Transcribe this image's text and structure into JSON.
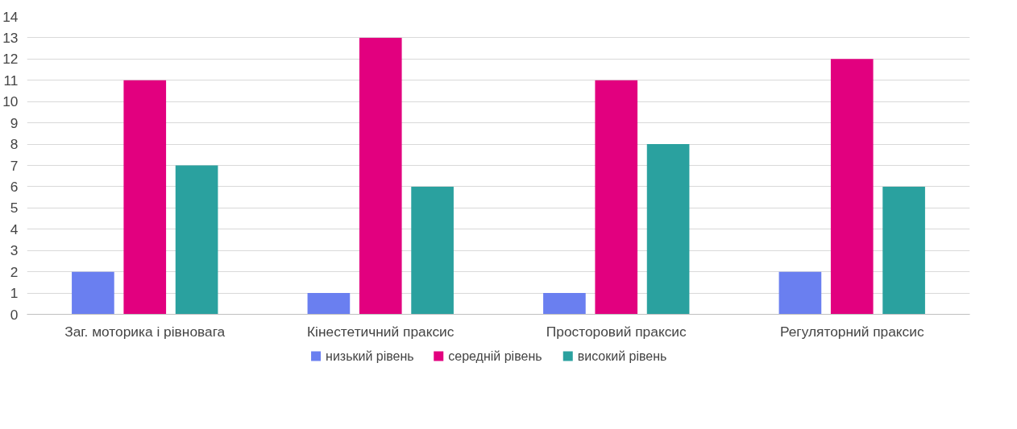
{
  "chart_data": {
    "type": "bar",
    "categories": [
      "Заг. моторика і рівновага",
      "Кінестетичний праксис",
      "Просторовий праксис",
      "Регуляторний праксис"
    ],
    "series": [
      {
        "name": "низький рівень",
        "color": "#6a7ff0",
        "values": [
          2,
          1,
          1,
          2
        ]
      },
      {
        "name": "середній рівень",
        "color": "#e2007f",
        "values": [
          11,
          13,
          11,
          12
        ]
      },
      {
        "name": "високий рівень",
        "color": "#2aa19f",
        "values": [
          7,
          6,
          8,
          6
        ]
      }
    ],
    "ylim": [
      0,
      14
    ],
    "yticks": [
      0,
      1,
      2,
      3,
      4,
      5,
      6,
      7,
      8,
      9,
      10,
      11,
      12,
      13,
      14
    ],
    "grid": "y",
    "legend": "bottom"
  }
}
